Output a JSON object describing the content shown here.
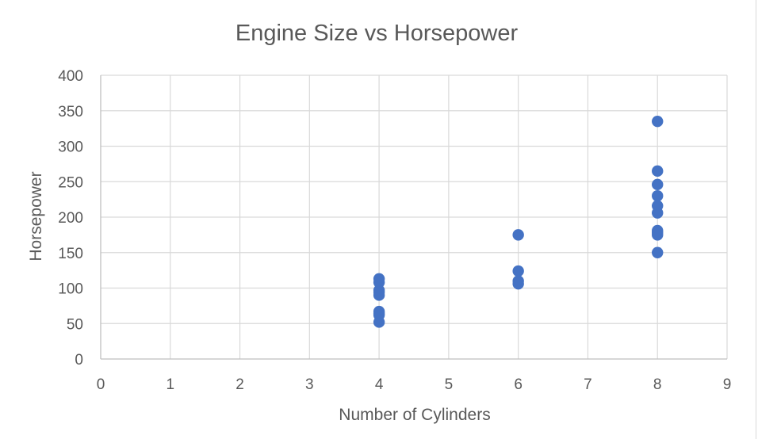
{
  "chart_data": {
    "type": "scatter",
    "title": "Engine Size vs Horsepower",
    "xlabel": "Number of Cylinders",
    "ylabel": "Horsepower",
    "xlim": [
      0,
      9
    ],
    "ylim": [
      0,
      400
    ],
    "x_ticks": [
      0,
      1,
      2,
      3,
      4,
      5,
      6,
      7,
      8,
      9
    ],
    "y_ticks": [
      0,
      50,
      100,
      150,
      200,
      250,
      300,
      350,
      400
    ],
    "grid": true,
    "legend": "none",
    "marker_color": "#4472C4",
    "series": [
      {
        "points": [
          {
            "x": 4,
            "y": 113
          },
          {
            "x": 4,
            "y": 108
          },
          {
            "x": 4,
            "y": 97
          },
          {
            "x": 4,
            "y": 94
          },
          {
            "x": 4,
            "y": 90
          },
          {
            "x": 4,
            "y": 67
          },
          {
            "x": 4,
            "y": 64
          },
          {
            "x": 4,
            "y": 62
          },
          {
            "x": 4,
            "y": 52
          },
          {
            "x": 6,
            "y": 175
          },
          {
            "x": 6,
            "y": 124
          },
          {
            "x": 6,
            "y": 110
          },
          {
            "x": 6,
            "y": 106
          },
          {
            "x": 8,
            "y": 335
          },
          {
            "x": 8,
            "y": 265
          },
          {
            "x": 8,
            "y": 246
          },
          {
            "x": 8,
            "y": 230
          },
          {
            "x": 8,
            "y": 216
          },
          {
            "x": 8,
            "y": 206
          },
          {
            "x": 8,
            "y": 181
          },
          {
            "x": 8,
            "y": 178
          },
          {
            "x": 8,
            "y": 175
          },
          {
            "x": 8,
            "y": 150
          }
        ]
      }
    ]
  }
}
